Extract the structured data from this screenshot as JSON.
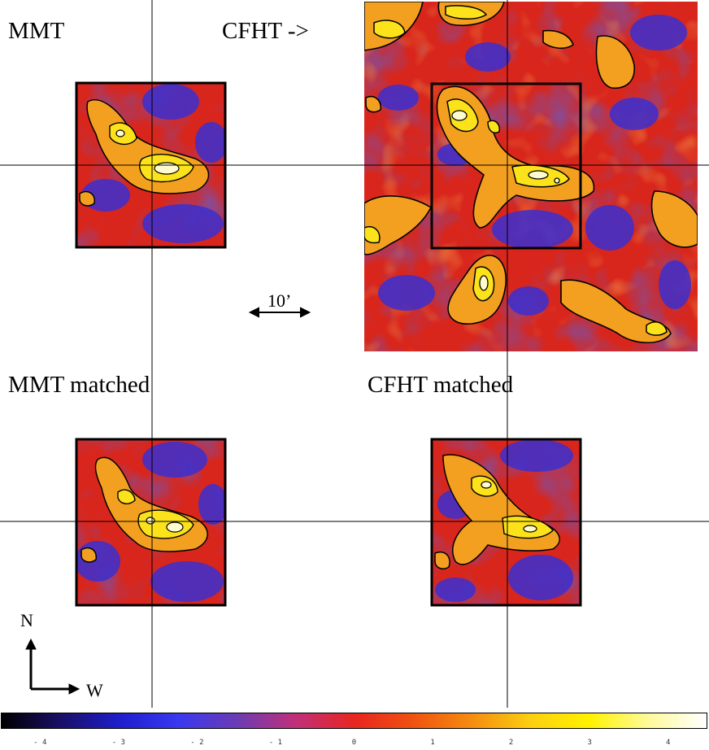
{
  "panels": {
    "mmt": {
      "label": "MMT"
    },
    "cfht_arrow": {
      "label": "CFHT ->"
    },
    "mmt_matched": {
      "label": "MMT matched"
    },
    "cfht_matched": {
      "label": "CFHT matched"
    }
  },
  "scale_bar": {
    "label": "10’"
  },
  "compass": {
    "north": "N",
    "west": "W"
  },
  "colorbar": {
    "min": -4.5,
    "max": 4.5,
    "ticks": [
      "-4",
      "-3",
      "-2",
      "-1",
      "0",
      "1",
      "2",
      "3",
      "4"
    ],
    "colors": [
      "#000000",
      "#1a0f66",
      "#1e1ecc",
      "#3a38f0",
      "#6a3cb4",
      "#c0307a",
      "#e82520",
      "#ef5210",
      "#f58c10",
      "#fbcf10",
      "#fff200",
      "#fffa9a",
      "#ffffff"
    ]
  }
}
